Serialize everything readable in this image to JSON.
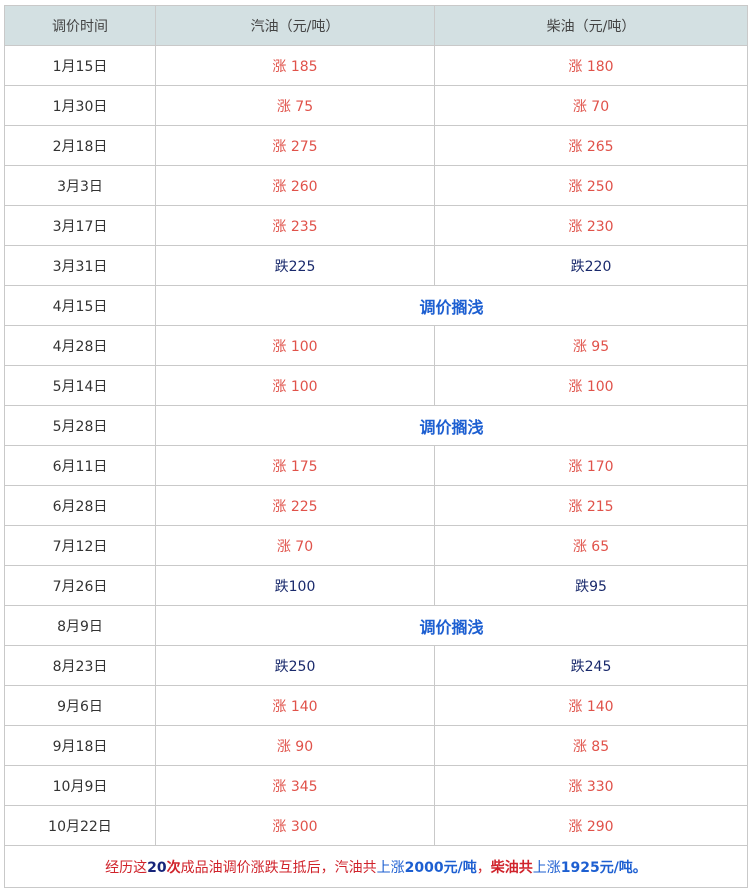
{
  "header": [
    "调价时间",
    "汽油（元/吨）",
    "柴油（元/吨）"
  ],
  "rows": [
    {
      "date": "1月15日",
      "gas": "涨 185",
      "diesel": "涨 180",
      "type": "up"
    },
    {
      "date": "1月30日",
      "gas": "涨 75",
      "diesel": "涨 70",
      "type": "up"
    },
    {
      "date": "2月18日",
      "gas": "涨 275",
      "diesel": "涨 265",
      "type": "up"
    },
    {
      "date": "3月3日",
      "gas": "涨 260",
      "diesel": "涨 250",
      "type": "up"
    },
    {
      "date": "3月17日",
      "gas": "涨 235",
      "diesel": "涨 230",
      "type": "up"
    },
    {
      "date": "3月31日",
      "gas": "跌225",
      "diesel": "跌220",
      "type": "down"
    },
    {
      "date": "4月15日",
      "note": "调价搁浅",
      "type": "pause"
    },
    {
      "date": "4月28日",
      "gas": "涨 100",
      "diesel": "涨 95",
      "type": "up"
    },
    {
      "date": "5月14日",
      "gas": "涨 100",
      "diesel": "涨 100",
      "type": "up"
    },
    {
      "date": "5月28日",
      "note": "调价搁浅",
      "type": "pause"
    },
    {
      "date": "6月11日",
      "gas": "涨 175",
      "diesel": "涨 170",
      "type": "up"
    },
    {
      "date": "6月28日",
      "gas": "涨 225",
      "diesel": "涨 215",
      "type": "up"
    },
    {
      "date": "7月12日",
      "gas": "涨 70",
      "diesel": "涨 65",
      "type": "up"
    },
    {
      "date": "7月26日",
      "gas": "跌100",
      "diesel": "跌95",
      "type": "down"
    },
    {
      "date": "8月9日",
      "note": "调价搁浅",
      "type": "pause"
    },
    {
      "date": "8月23日",
      "gas": "跌250",
      "diesel": "跌245",
      "type": "down"
    },
    {
      "date": "9月6日",
      "gas": "涨 140",
      "diesel": "涨 140",
      "type": "up"
    },
    {
      "date": "9月18日",
      "gas": "涨 90",
      "diesel": "涨 85",
      "type": "up"
    },
    {
      "date": "10月9日",
      "gas": "涨 345",
      "diesel": "涨 330",
      "type": "up"
    },
    {
      "date": "10月22日",
      "gas": "涨 300",
      "diesel": "涨 290",
      "type": "up"
    }
  ],
  "footer": {
    "p1": "经历这",
    "p2": "20",
    "p3": "次",
    "p4": "成品油调价涨跌互抵后，汽油共",
    "p5": "上涨",
    "p6": "2000元/吨",
    "p7": "，",
    "p8": "柴油共",
    "p9": "上涨",
    "p10": "1925元/吨。"
  },
  "colors": {
    "up": "#e0524a",
    "down": "#1a2a6c",
    "pause": "#1d5fd1",
    "header_bg": "#d3e0e2"
  }
}
